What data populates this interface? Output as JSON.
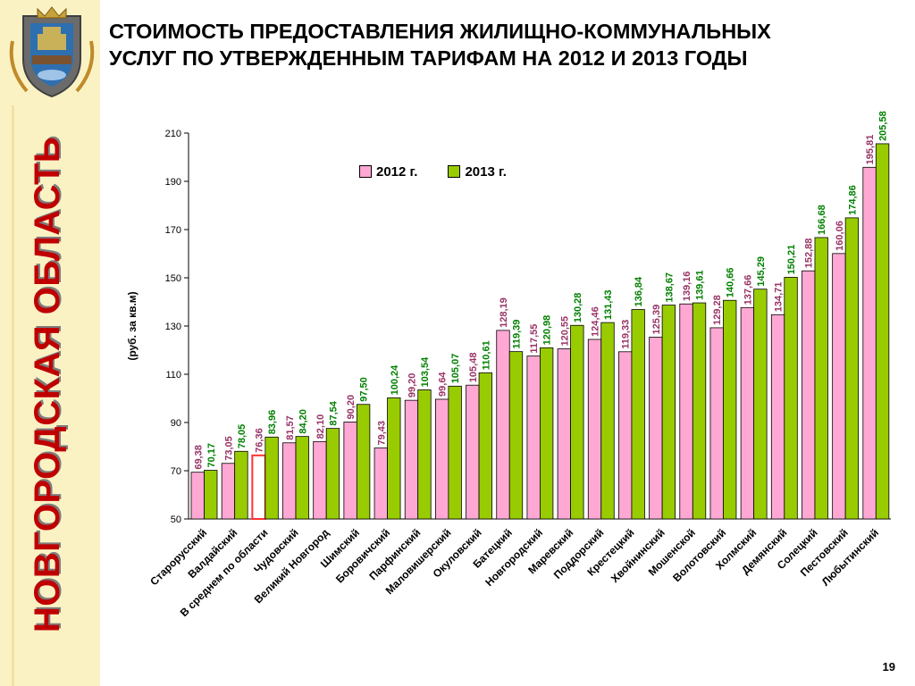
{
  "page": {
    "region": "НОВГОРОДСКАЯ ОБЛАСТЬ",
    "title_line1": "СТОИМОСТЬ ПРЕДОСТАВЛЕНИЯ ЖИЛИЩНО-КОММУНАЛЬНЫХ",
    "title_line2": "УСЛУГ ПО УТВЕРЖДЕННЫМ ТАРИФАМ НА 2012 И 2013 ГОДЫ",
    "page_number": "19",
    "emblem_icon": "coat-of-arms-icon"
  },
  "colors": {
    "sidebar_bg": "#fbf2c4",
    "region_text": "#c00000",
    "bar_2012": "#ffa8d4",
    "bar_2013": "#99cc00",
    "highlight_2012": "#ff3333",
    "label_2012": "#993366",
    "label_2013": "#008000"
  },
  "chart_data": {
    "type": "bar",
    "title": "",
    "xlabel": "",
    "ylabel": "(руб. за кв.м)",
    "ylim": [
      50,
      210
    ],
    "yticks": [
      50,
      70,
      90,
      110,
      130,
      150,
      170,
      190,
      210
    ],
    "grid": false,
    "legend_position": "top-left",
    "highlight_category": "В среднем по области",
    "categories": [
      "Старорусский",
      "Валдайский",
      "В среднем по области",
      "Чудовский",
      "Великий Новгород",
      "Шимский",
      "Боровичский",
      "Парфинский",
      "Маловишерский",
      "Окуловский",
      "Батецкий",
      "Новгородский",
      "Маревский",
      "Поддорский",
      "Крестецкий",
      "Хвойнинский",
      "Мошенской",
      "Волотовский",
      "Холмский",
      "Демянский",
      "Солецкий",
      "Пестовский",
      "Любытинский"
    ],
    "series": [
      {
        "name": "2012 г.",
        "values": [
          69.38,
          73.05,
          76.36,
          81.57,
          82.1,
          90.2,
          79.43,
          99.2,
          99.64,
          105.48,
          128.19,
          117.55,
          120.55,
          124.46,
          119.33,
          125.39,
          139.16,
          129.28,
          137.66,
          134.71,
          152.88,
          160.06,
          195.81
        ],
        "labels": [
          "69,38",
          "73,05",
          "76,36",
          "81,57",
          "82,10",
          "90,20",
          "79,43",
          "99,20",
          "99,64",
          "105,48",
          "128,19",
          "117,55",
          "120,55",
          "124,46",
          "119,33",
          "125,39",
          "139,16",
          "129,28",
          "137,66",
          "134,71",
          "152,88",
          "160,06",
          "195,81"
        ]
      },
      {
        "name": "2013 г.",
        "values": [
          70.17,
          78.05,
          83.96,
          84.2,
          87.54,
          97.5,
          100.24,
          103.54,
          105.07,
          110.61,
          119.39,
          120.98,
          130.28,
          131.43,
          136.84,
          138.67,
          139.61,
          140.66,
          145.29,
          150.21,
          166.68,
          174.86,
          205.58
        ],
        "labels": [
          "70,17",
          "78,05",
          "83,96",
          "84,20",
          "87,54",
          "97,50",
          "100,24",
          "103,54",
          "105,07",
          "110,61",
          "119,39",
          "120,98",
          "130,28",
          "131,43",
          "136,84",
          "138,67",
          "139,61",
          "140,66",
          "145,29",
          "150,21",
          "166,68",
          "174,86",
          "205,58"
        ]
      }
    ]
  }
}
